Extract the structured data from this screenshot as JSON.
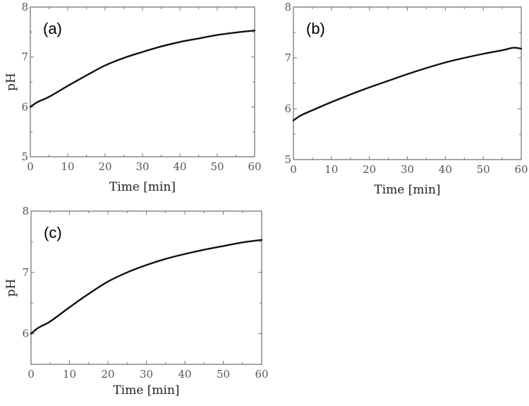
{
  "chart_data": [
    {
      "type": "line",
      "panel_label": "(a)",
      "xlabel": "Time [min]",
      "ylabel": "pH",
      "xlim": [
        0,
        60
      ],
      "ylim": [
        5,
        8
      ],
      "xticks": [
        "0",
        "10",
        "20",
        "30",
        "40",
        "50",
        "60"
      ],
      "yticks": [
        "5",
        "6",
        "7",
        "8"
      ],
      "series": [
        {
          "name": "pH",
          "color": "#111111",
          "x": [
            0,
            2,
            5,
            10,
            15,
            20,
            25,
            30,
            35,
            40,
            45,
            50,
            55,
            60
          ],
          "y": [
            6.0,
            6.1,
            6.2,
            6.42,
            6.63,
            6.83,
            6.98,
            7.1,
            7.21,
            7.3,
            7.37,
            7.44,
            7.49,
            7.53
          ]
        }
      ]
    },
    {
      "type": "line",
      "panel_label": "(b)",
      "xlabel": "Time [min]",
      "ylabel": "",
      "xlim": [
        0,
        60
      ],
      "ylim": [
        5,
        8
      ],
      "xticks": [
        "0",
        "10",
        "20",
        "30",
        "40",
        "50",
        "60"
      ],
      "yticks": [
        "5",
        "6",
        "7",
        "8"
      ],
      "series": [
        {
          "name": "pH",
          "color": "#111111",
          "x": [
            0,
            2,
            5,
            10,
            15,
            20,
            25,
            30,
            35,
            40,
            45,
            50,
            55,
            58,
            60
          ],
          "y": [
            5.77,
            5.87,
            5.97,
            6.13,
            6.28,
            6.42,
            6.55,
            6.68,
            6.8,
            6.91,
            7.0,
            7.08,
            7.15,
            7.2,
            7.18
          ]
        }
      ]
    },
    {
      "type": "line",
      "panel_label": "(c)",
      "xlabel": "Time [min]",
      "ylabel": "pH",
      "xlim": [
        0,
        60
      ],
      "ylim": [
        5.5,
        8
      ],
      "xticks": [
        "0",
        "10",
        "20",
        "30",
        "40",
        "50",
        "60"
      ],
      "yticks": [
        "6",
        "7",
        "8"
      ],
      "series": [
        {
          "name": "pH",
          "color": "#111111",
          "x": [
            0,
            2,
            5,
            10,
            15,
            20,
            25,
            30,
            35,
            40,
            45,
            50,
            55,
            60
          ],
          "y": [
            6.0,
            6.1,
            6.2,
            6.43,
            6.65,
            6.85,
            7.0,
            7.12,
            7.22,
            7.3,
            7.37,
            7.43,
            7.49,
            7.53
          ]
        }
      ]
    }
  ]
}
